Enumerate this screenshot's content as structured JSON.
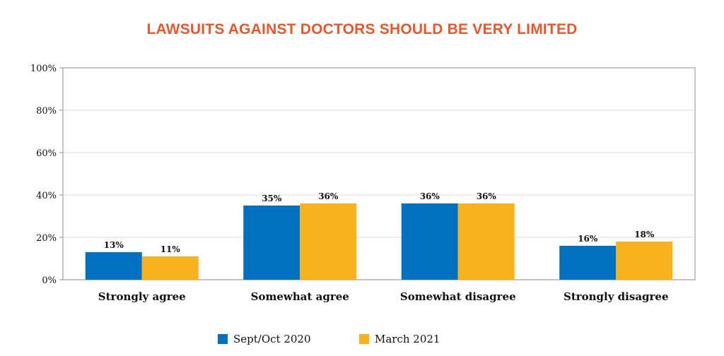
{
  "chart_data": {
    "type": "bar",
    "title": "LAWSUITS AGAINST DOCTORS SHOULD BE VERY LIMITED",
    "categories": [
      "Strongly agree",
      "Somewhat agree",
      "Somewhat disagree",
      "Strongly disagree"
    ],
    "series": [
      {
        "name": "Sept/Oct 2020",
        "values": [
          13,
          35,
          36,
          16
        ],
        "labels": [
          "13%",
          "35%",
          "36%",
          "16%"
        ],
        "color": "#0070c0"
      },
      {
        "name": "March 2021",
        "values": [
          11,
          36,
          36,
          18
        ],
        "labels": [
          "11%",
          "36%",
          "36%",
          "18%"
        ],
        "color": "#f8b31c"
      }
    ],
    "yticks": [
      "0%",
      "20%",
      "40%",
      "60%",
      "80%",
      "100%"
    ],
    "ylim": [
      0,
      100
    ],
    "grid": true,
    "legend": "bottom",
    "title_color": "#e8572a"
  }
}
